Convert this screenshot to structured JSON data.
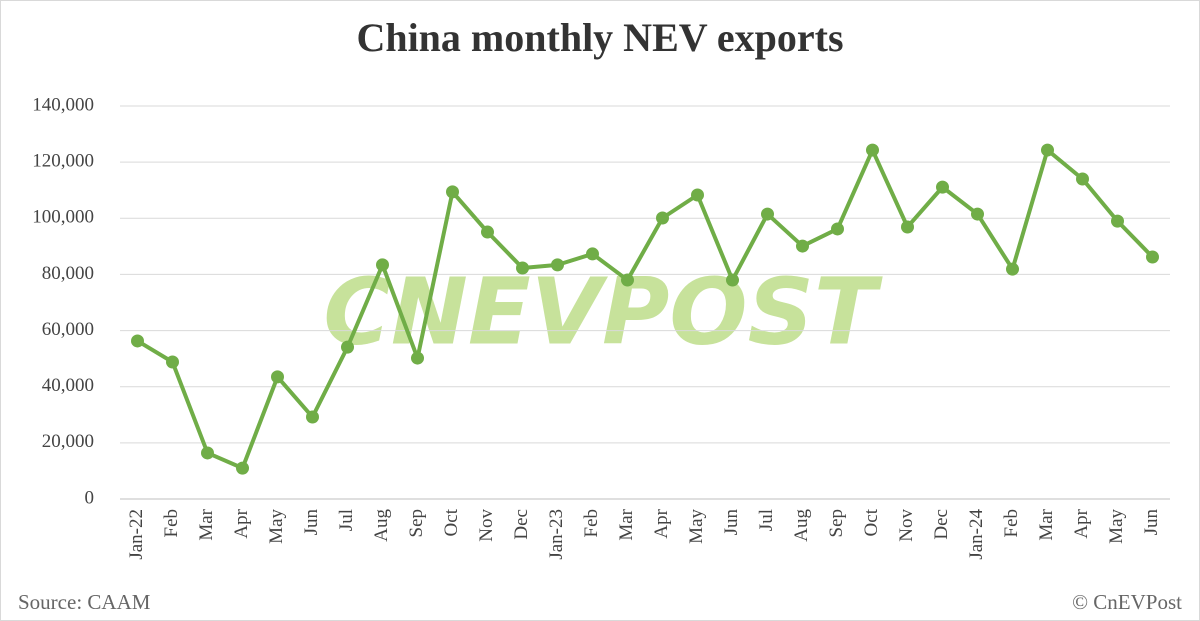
{
  "chart_data": {
    "type": "line",
    "title": "China monthly NEV exports",
    "categories": [
      "Jan-22",
      "Feb",
      "Mar",
      "Apr",
      "May",
      "Jun",
      "Jul",
      "Aug",
      "Sep",
      "Oct",
      "Nov",
      "Dec",
      "Jan-23",
      "Feb",
      "Mar",
      "Apr",
      "May",
      "Jun",
      "Jul",
      "Aug",
      "Sep",
      "Oct",
      "Nov",
      "Dec",
      "Jan-24",
      "Feb",
      "Mar",
      "Apr",
      "May",
      "Jun"
    ],
    "values": [
      56300,
      48800,
      16400,
      11000,
      43500,
      29200,
      54100,
      83400,
      50200,
      109400,
      95100,
      82300,
      83400,
      87300,
      78000,
      100100,
      108300,
      78000,
      101500,
      90100,
      96200,
      124300,
      96900,
      111100,
      101500,
      81900,
      124300,
      114000,
      99000,
      86200
    ],
    "color": "#70ad47",
    "ylim": [
      0,
      140000
    ],
    "yticks": [
      0,
      {
        "value": 20000,
        "label": "20,000"
      },
      {
        "value": 40000,
        "label": "40,000"
      },
      {
        "value": 60000,
        "label": "60,000"
      },
      {
        "value": 80000,
        "label": "80,000"
      },
      {
        "value": 100000,
        "label": "100,000"
      },
      {
        "value": 120000,
        "label": "120,000"
      },
      {
        "value": 140000,
        "label": "140,000"
      }
    ],
    "grid": true,
    "watermark": "CNEVPOST",
    "source": "Source: CAAM",
    "credit": "© CnEVPost"
  }
}
